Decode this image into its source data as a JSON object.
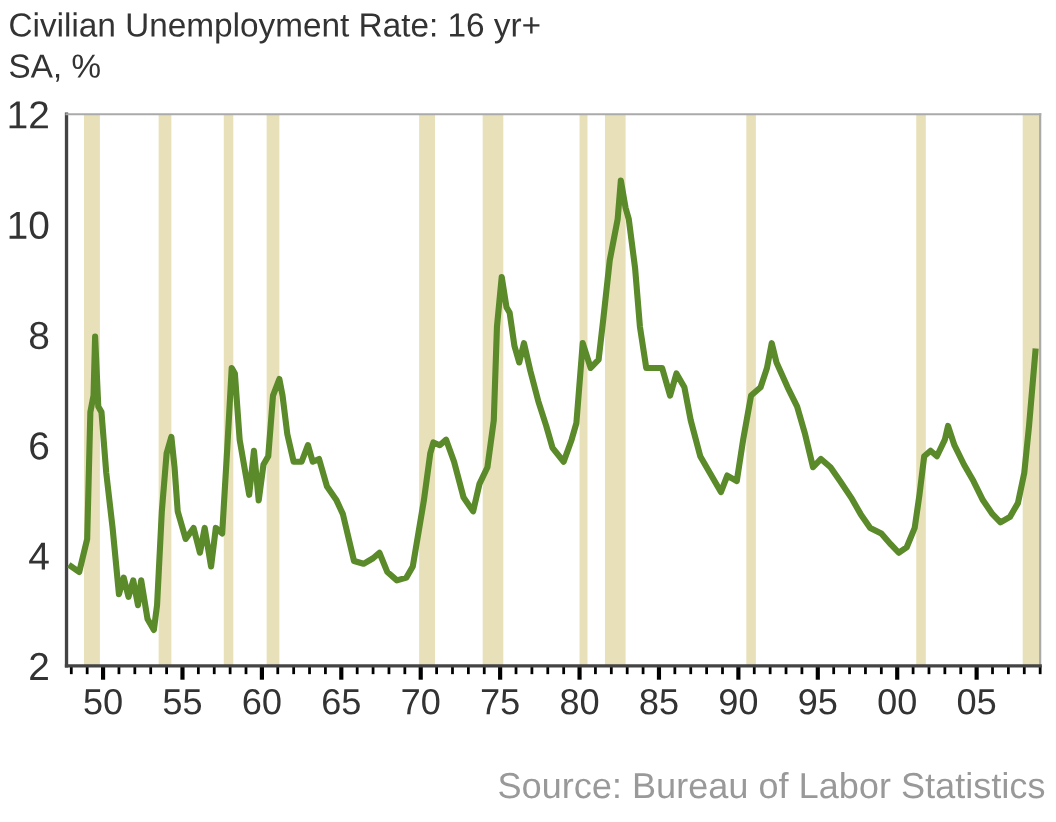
{
  "chart_data": {
    "type": "line",
    "title": "Civilian Unemployment Rate: 16 yr+",
    "subtitle": "SA, %",
    "annotations": [
      "Source: Bureau of Labor Statistics"
    ],
    "xlim": [
      1947.7,
      2009.0
    ],
    "xticks": [
      {
        "value": 1950,
        "label": "50"
      },
      {
        "value": 1955,
        "label": "55"
      },
      {
        "value": 1960,
        "label": "60"
      },
      {
        "value": 1965,
        "label": "65"
      },
      {
        "value": 1970,
        "label": "70"
      },
      {
        "value": 1975,
        "label": "75"
      },
      {
        "value": 1980,
        "label": "80"
      },
      {
        "value": 1985,
        "label": "85"
      },
      {
        "value": 1990,
        "label": "90"
      },
      {
        "value": 1995,
        "label": "95"
      },
      {
        "value": 2000,
        "label": "00"
      },
      {
        "value": 2005,
        "label": "05"
      }
    ],
    "ylim": [
      2,
      12
    ],
    "yticks": [
      2,
      4,
      6,
      8,
      10,
      12
    ],
    "grid": false,
    "legend": false,
    "marker": "none",
    "line_style": "solid",
    "bands": [
      {
        "axis": "x",
        "from": 1948.8,
        "to": 1949.8,
        "color": "#e8e0b8"
      },
      {
        "axis": "x",
        "from": 1953.5,
        "to": 1954.3,
        "color": "#e8e0b8"
      },
      {
        "axis": "x",
        "from": 1957.6,
        "to": 1958.2,
        "color": "#e8e0b8"
      },
      {
        "axis": "x",
        "from": 1960.3,
        "to": 1961.1,
        "color": "#e8e0b8"
      },
      {
        "axis": "x",
        "from": 1969.9,
        "to": 1970.9,
        "color": "#e8e0b8"
      },
      {
        "axis": "x",
        "from": 1973.9,
        "to": 1975.2,
        "color": "#e8e0b8"
      },
      {
        "axis": "x",
        "from": 1980.0,
        "to": 1980.5,
        "color": "#e8e0b8"
      },
      {
        "axis": "x",
        "from": 1981.6,
        "to": 1982.9,
        "color": "#e8e0b8"
      },
      {
        "axis": "x",
        "from": 1990.5,
        "to": 1991.1,
        "color": "#e8e0b8"
      },
      {
        "axis": "x",
        "from": 2001.2,
        "to": 2001.8,
        "color": "#e8e0b8"
      },
      {
        "axis": "x",
        "from": 2007.9,
        "to": 2009.0,
        "color": "#e8e0b8"
      }
    ],
    "series": [
      {
        "color": "#5a8a2a",
        "x": [
          1948.0,
          1948.5,
          1949.0,
          1949.2,
          1949.4,
          1949.5,
          1949.7,
          1949.9,
          1950.2,
          1950.6,
          1951.0,
          1951.3,
          1951.6,
          1951.9,
          1952.2,
          1952.4,
          1952.8,
          1953.2,
          1953.4,
          1953.7,
          1954.0,
          1954.3,
          1954.5,
          1954.7,
          1955.2,
          1955.7,
          1956.1,
          1956.4,
          1956.8,
          1957.1,
          1957.5,
          1957.8,
          1958.1,
          1958.3,
          1958.6,
          1959.2,
          1959.5,
          1959.8,
          1960.1,
          1960.4,
          1960.7,
          1961.1,
          1961.3,
          1961.6,
          1962.0,
          1962.5,
          1962.9,
          1963.2,
          1963.6,
          1964.1,
          1964.7,
          1965.1,
          1965.8,
          1966.4,
          1967.0,
          1967.4,
          1967.9,
          1968.5,
          1969.1,
          1969.5,
          1970.2,
          1970.6,
          1970.8,
          1971.2,
          1971.6,
          1972.1,
          1972.7,
          1973.3,
          1973.7,
          1974.2,
          1974.6,
          1974.8,
          1975.1,
          1975.4,
          1975.6,
          1975.9,
          1976.2,
          1976.5,
          1976.9,
          1977.4,
          1977.9,
          1978.3,
          1979.0,
          1979.5,
          1979.8,
          1980.2,
          1980.7,
          1981.2,
          1981.5,
          1981.9,
          1982.4,
          1982.6,
          1982.9,
          1983.1,
          1983.5,
          1983.8,
          1984.2,
          1984.7,
          1985.2,
          1985.7,
          1986.1,
          1986.6,
          1987.0,
          1987.6,
          1988.2,
          1988.9,
          1989.3,
          1989.9,
          1990.3,
          1990.8,
          1991.4,
          1991.8,
          1992.1,
          1992.4,
          1993.1,
          1993.7,
          1994.2,
          1994.7,
          1995.2,
          1995.8,
          1996.4,
          1997.1,
          1997.7,
          1998.3,
          1999.0,
          1999.6,
          2000.1,
          2000.6,
          2001.1,
          2001.4,
          2001.7,
          2002.1,
          2002.5,
          2003.0,
          2003.2,
          2003.6,
          2004.2,
          2004.8,
          2005.4,
          2006.0,
          2006.5,
          2007.1,
          2007.6,
          2008.0,
          2008.3,
          2008.7
        ],
        "values": [
          3.8,
          3.7,
          4.3,
          6.6,
          6.9,
          7.97,
          6.7,
          6.6,
          5.5,
          4.5,
          3.3,
          3.6,
          3.25,
          3.55,
          3.1,
          3.55,
          2.85,
          2.65,
          3.1,
          4.8,
          5.85,
          6.15,
          5.6,
          4.8,
          4.3,
          4.5,
          4.05,
          4.5,
          3.8,
          4.5,
          4.4,
          5.85,
          7.4,
          7.3,
          6.1,
          5.1,
          5.9,
          5.0,
          5.65,
          5.8,
          6.9,
          7.2,
          6.9,
          6.2,
          5.7,
          5.7,
          6.0,
          5.7,
          5.75,
          5.25,
          5.0,
          4.75,
          3.9,
          3.85,
          3.95,
          4.05,
          3.7,
          3.55,
          3.6,
          3.8,
          5.0,
          5.85,
          6.05,
          6.0,
          6.1,
          5.7,
          5.05,
          4.8,
          5.3,
          5.6,
          6.45,
          8.15,
          9.05,
          8.5,
          8.4,
          7.8,
          7.5,
          7.85,
          7.35,
          6.8,
          6.35,
          5.95,
          5.7,
          6.1,
          6.4,
          7.85,
          7.4,
          7.55,
          8.3,
          9.35,
          10.1,
          10.8,
          10.3,
          10.1,
          9.2,
          8.15,
          7.4,
          7.4,
          7.4,
          6.9,
          7.3,
          7.05,
          6.45,
          5.8,
          5.5,
          5.15,
          5.45,
          5.35,
          6.1,
          6.9,
          7.05,
          7.4,
          7.85,
          7.5,
          7.05,
          6.7,
          6.2,
          5.6,
          5.75,
          5.6,
          5.35,
          5.05,
          4.75,
          4.5,
          4.4,
          4.2,
          4.05,
          4.15,
          4.5,
          5.1,
          5.8,
          5.9,
          5.8,
          6.1,
          6.35,
          6.0,
          5.65,
          5.35,
          5.0,
          4.75,
          4.6,
          4.7,
          4.95,
          5.5,
          6.35,
          7.7
        ]
      }
    ]
  }
}
